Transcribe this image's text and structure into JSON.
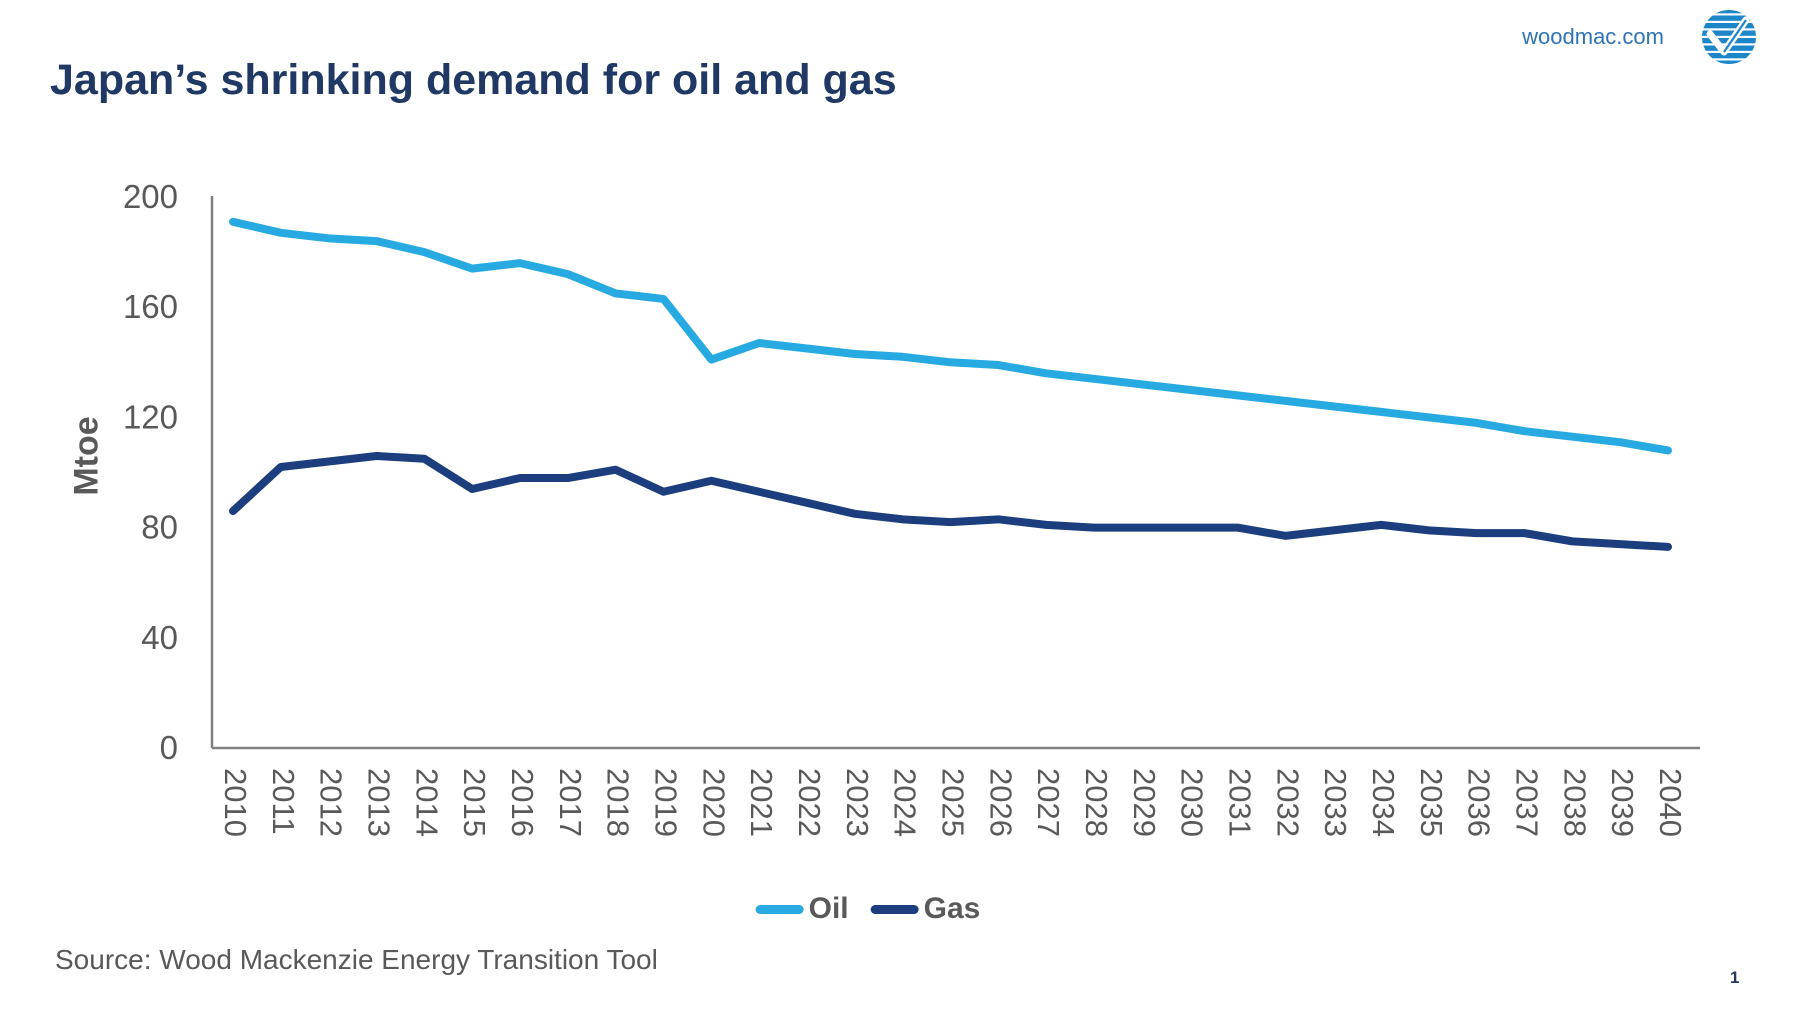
{
  "header": {
    "title": "Japan’s shrinking demand for oil and gas",
    "site_link": "woodmac.com"
  },
  "footer": {
    "source": "Source: Wood Mackenzie Energy Transition Tool",
    "page_number": "1"
  },
  "colors": {
    "title": "#1F3864",
    "site_link": "#2E74B5",
    "axis": "#808080",
    "tick_text": "#595959",
    "oil": "#27AAE1",
    "gas": "#1D3E7E",
    "logo_blue": "#1C86C8"
  },
  "chart_data": {
    "type": "line",
    "title": "",
    "xlabel": "",
    "ylabel": "Mtoe",
    "ylim": [
      0,
      200
    ],
    "yticks": [
      0,
      40,
      80,
      120,
      160,
      200
    ],
    "grid": false,
    "legend_position": "bottom-center",
    "x": [
      2010,
      2011,
      2012,
      2013,
      2014,
      2015,
      2016,
      2017,
      2018,
      2019,
      2020,
      2021,
      2022,
      2023,
      2024,
      2025,
      2026,
      2027,
      2028,
      2029,
      2030,
      2031,
      2032,
      2033,
      2034,
      2035,
      2036,
      2037,
      2038,
      2039,
      2040
    ],
    "series": [
      {
        "name": "Oil",
        "color": "#27AAE1",
        "values": [
          191,
          187,
          185,
          184,
          180,
          174,
          176,
          172,
          165,
          163,
          141,
          147,
          145,
          143,
          142,
          140,
          139,
          136,
          134,
          132,
          130,
          128,
          126,
          124,
          122,
          120,
          118,
          115,
          113,
          111,
          108
        ]
      },
      {
        "name": "Gas",
        "color": "#1D3E7E",
        "values": [
          86,
          102,
          104,
          106,
          105,
          94,
          98,
          98,
          101,
          93,
          97,
          93,
          89,
          85,
          83,
          82,
          83,
          81,
          80,
          80,
          80,
          80,
          77,
          79,
          81,
          79,
          78,
          78,
          75,
          74,
          73
        ]
      }
    ]
  }
}
